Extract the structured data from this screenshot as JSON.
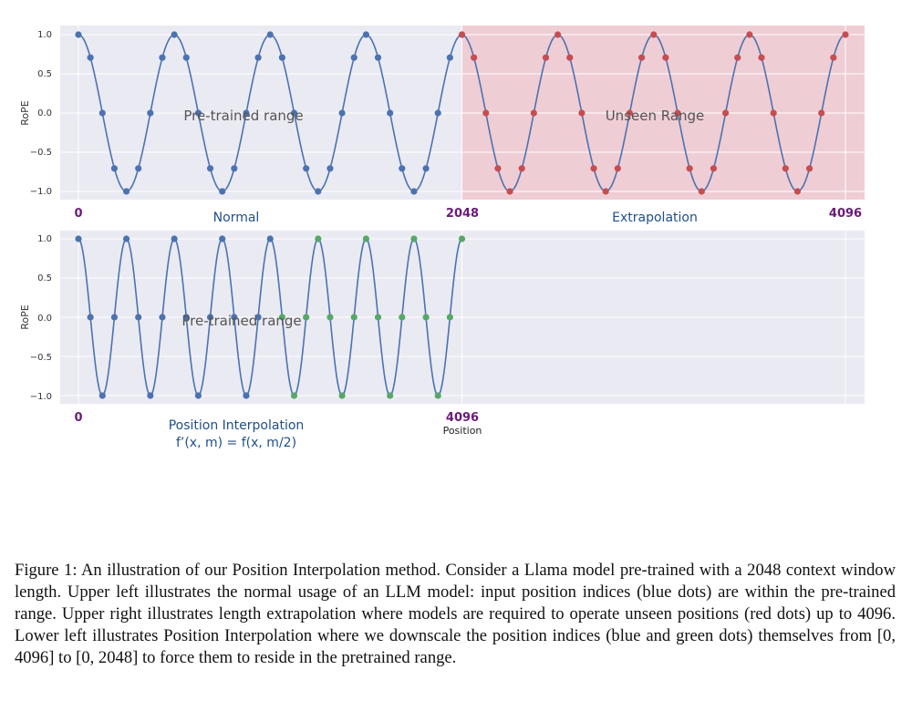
{
  "figure": {
    "top_panel": {
      "ylabel": "RoPE",
      "yticks": [
        "1.0",
        "0.5",
        "0.0",
        "−0.5",
        "−1.0"
      ],
      "pos_labels": [
        "0",
        "2048",
        "4096"
      ],
      "region_labels": [
        "Normal",
        "Extrapolation"
      ],
      "range_labels": [
        "Pre-trained range",
        "Unseen Range"
      ]
    },
    "bottom_panel": {
      "ylabel": "RoPE",
      "yticks": [
        "1.0",
        "0.5",
        "0.0",
        "−0.5",
        "−1.0"
      ],
      "pos_labels": [
        "0",
        "4096"
      ],
      "xlabel": "Position",
      "region_label": "Position Interpolation",
      "formula": "f’(x, m) = f(x, m/2)",
      "range_label": "Pre-trained range"
    },
    "colors": {
      "background": "#eaeaf2",
      "shade": "#f0c8cf",
      "line": "#4c72b0",
      "blue": "#4c72b0",
      "red": "#c44e52",
      "green": "#55a868"
    }
  },
  "chart_data": [
    {
      "type": "line",
      "ylabel": "RoPE",
      "ylim": [
        -1.1,
        1.1
      ],
      "x_ticks": [
        "0",
        "2048",
        "4096"
      ],
      "function": "cos(2π·x/512)",
      "series": [
        {
          "x": [
            0,
            64,
            128,
            192,
            256,
            320,
            384,
            448,
            512,
            576,
            640,
            704,
            768,
            832,
            896,
            960,
            1024,
            1088,
            1152,
            1216,
            1280,
            1344,
            1408,
            1472,
            1536,
            1600,
            1664,
            1728,
            1792,
            1856,
            1920,
            1984,
            2048
          ],
          "dots": "blue"
        },
        {
          "x": [
            2048,
            2112,
            2176,
            2240,
            2304,
            2368,
            2432,
            2496,
            2560,
            2624,
            2688,
            2752,
            2816,
            2880,
            2944,
            3008,
            3072,
            3136,
            3200,
            3264,
            3328,
            3392,
            3456,
            3520,
            3584,
            3648,
            3712,
            3776,
            3840,
            3904,
            3968,
            4032,
            4096
          ],
          "dots": "red"
        }
      ]
    },
    {
      "type": "line",
      "ylabel": "RoPE",
      "ylim": [
        -1.1,
        1.1
      ],
      "xlabel": "Position",
      "x_ticks": [
        "0",
        "4096"
      ],
      "function": "cos(2π·(m/2)/512)",
      "series": [
        {
          "x": [
            0,
            64,
            128,
            192,
            256,
            320,
            384,
            448,
            512,
            576,
            640,
            704,
            768,
            832,
            896,
            960,
            1024
          ],
          "dots": "blue"
        },
        {
          "x": [
            1088,
            1152,
            1216,
            1280,
            1344,
            1408,
            1472,
            1536,
            1600,
            1664,
            1728,
            1792,
            1856,
            1920,
            1984,
            2048
          ],
          "dots": "green"
        }
      ]
    }
  ],
  "caption": {
    "label": "Figure 1:",
    "text": "An illustration of our Position Interpolation method. Consider a Llama model pre-trained with a 2048 context window length. Upper left illustrates the normal usage of an LLM model: input position indices (blue dots) are within the pre-trained range. Upper right illustrates length extrapolation where models are required to operate unseen positions (red dots) up to 4096. Lower left illustrates Position Interpolation where we downscale the position indices (blue and green dots) themselves from [0, 4096] to [0, 2048] to force them to reside in the pretrained range."
  }
}
